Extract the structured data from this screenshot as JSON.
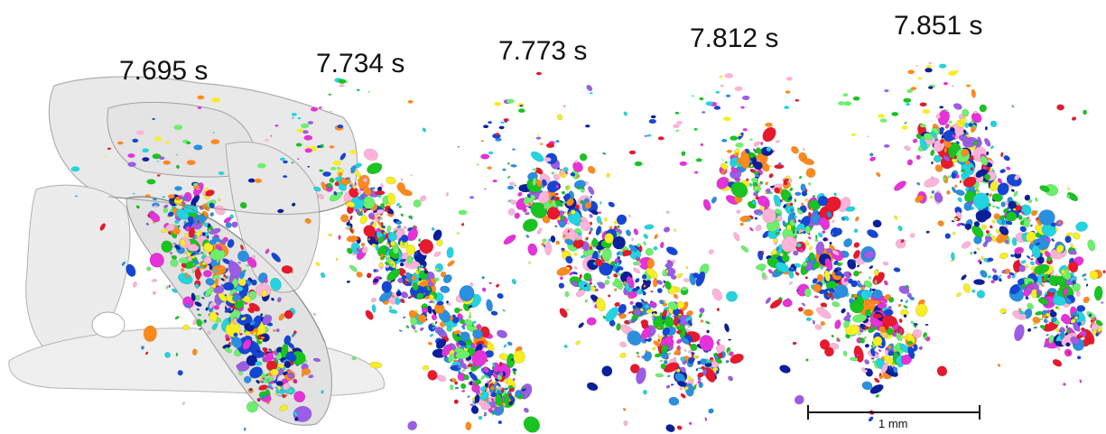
{
  "timestamps": [
    "7.695 s",
    "7.734 s",
    "7.773 s",
    "7.812 s",
    "7.851 s"
  ],
  "scale_bar": {
    "label": "1 mm"
  },
  "particle_colors": [
    "#e8192c",
    "#1446d6",
    "#f7ee23",
    "#19c421",
    "#ff8a1c",
    "#e632d8",
    "#22d4e0",
    "#2b8fe0",
    "#9b5de5",
    "#0a1f9c",
    "#ffb3d9",
    "#6cf06c"
  ],
  "shell_color": "#9a9a9a"
}
